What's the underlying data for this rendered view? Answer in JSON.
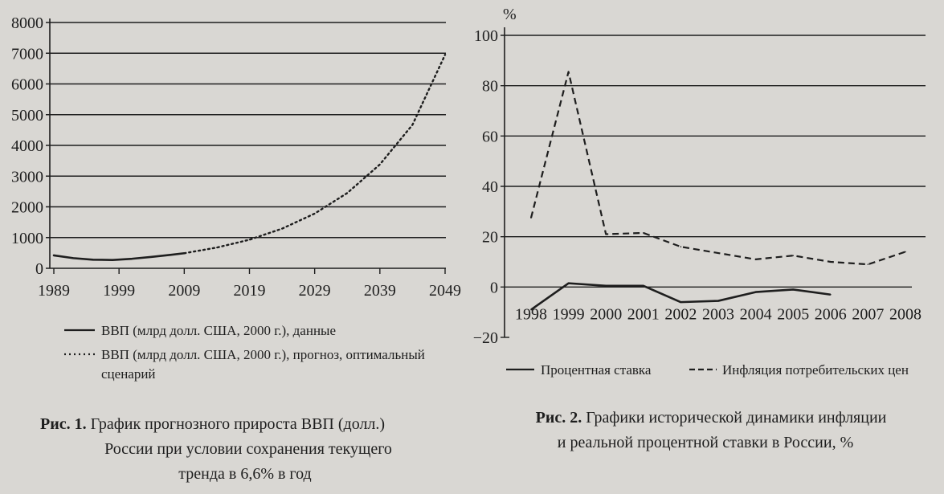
{
  "chart_data": [
    {
      "type": "line",
      "title": "",
      "xlabel": "",
      "ylabel": "",
      "ylim": [
        0,
        8000
      ],
      "yticks": [
        "8000",
        "7000",
        "6000",
        "5000",
        "4000",
        "3000",
        "2000",
        "1000",
        "0"
      ],
      "xticks": [
        "1989",
        "1999",
        "2009",
        "2019",
        "2029",
        "2039",
        "2049"
      ],
      "xlim": [
        1989,
        2049
      ],
      "grid": true,
      "legend_position": "bottom",
      "series": [
        {
          "name": "ВВП (млрд долл. США, 2000 г.), данные",
          "style": "solid",
          "x": [
            1989,
            1992,
            1995,
            1998,
            2001,
            2004,
            2007,
            2009
          ],
          "values": [
            420,
            330,
            280,
            270,
            310,
            370,
            440,
            490
          ]
        },
        {
          "name": "ВВП (млрд долл. США, 2000 г.), прогноз, оптимальный",
          "name_cont": "сценарий",
          "style": "dotted",
          "x": [
            2009,
            2014,
            2019,
            2024,
            2029,
            2034,
            2039,
            2044,
            2049
          ],
          "values": [
            490,
            675,
            930,
            1290,
            1780,
            2450,
            3380,
            4670,
            6950
          ]
        }
      ],
      "caption": {
        "bold": "Рис. 1.",
        "line1": "График прогнозного прироста ВВП (долл.)",
        "line2": "России при условии сохранения текущего",
        "line3": "тренда в 6,6% в год"
      }
    },
    {
      "type": "line",
      "title": "",
      "xlabel": "",
      "ylabel": "%",
      "ylim": [
        -20,
        100
      ],
      "yticks": [
        "100",
        "80",
        "60",
        "40",
        "20",
        "0",
        "−20"
      ],
      "categories": [
        "1998",
        "1999",
        "2000",
        "2001",
        "2002",
        "2003",
        "2004",
        "2005",
        "2006",
        "2007",
        "2008"
      ],
      "grid": true,
      "legend_position": "bottom",
      "series": [
        {
          "name": "Процентная ставка",
          "style": "solid",
          "values": [
            -9,
            1.5,
            0.5,
            0.5,
            -6,
            -5.5,
            -2,
            -1,
            -3,
            null,
            null
          ]
        },
        {
          "name": "Инфляция потребительских цен",
          "style": "dashed",
          "values": [
            27.5,
            85.5,
            21,
            21.5,
            16,
            13.5,
            11,
            12.5,
            10,
            9,
            14
          ]
        }
      ],
      "caption": {
        "bold": "Рис. 2.",
        "line1": "Графики исторической динамики инфляции",
        "line2": "и реальной процентной ставки в России, %"
      }
    }
  ]
}
